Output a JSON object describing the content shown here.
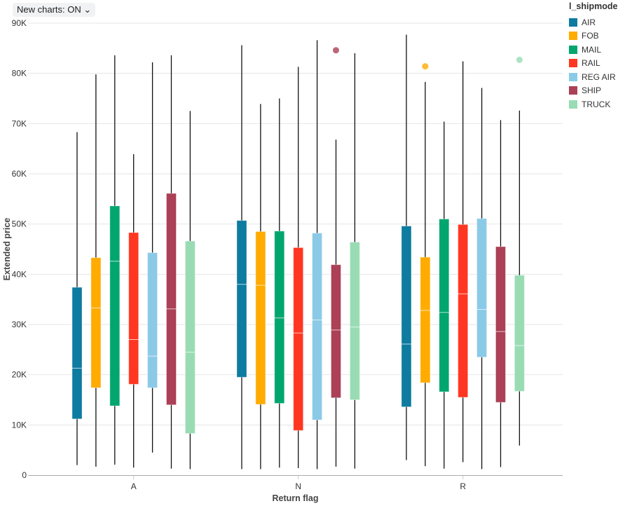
{
  "toggle": {
    "label": "New charts: ON",
    "icon": "chevron-down-icon"
  },
  "chart_data": {
    "type": "boxplot",
    "xlabel": "Return flag",
    "ylabel": "Extended price",
    "ylim": [
      0,
      90000
    ],
    "y_ticks": [
      "0",
      "10K",
      "20K",
      "30K",
      "40K",
      "50K",
      "60K",
      "70K",
      "80K",
      "90K"
    ],
    "grid": true,
    "legend_title": "l_shipmode",
    "legend_position": "right",
    "categories": [
      "A",
      "N",
      "R"
    ],
    "series": [
      {
        "name": "AIR",
        "color": "#0e7ba0",
        "boxes": [
          {
            "min": 2000,
            "q1": 11200,
            "median": 21300,
            "q3": 37400,
            "max": 68300,
            "outliers": []
          },
          {
            "min": 1200,
            "q1": 19500,
            "median": 38000,
            "q3": 50700,
            "max": 85600,
            "outliers": []
          },
          {
            "min": 3000,
            "q1": 13600,
            "median": 26100,
            "q3": 49600,
            "max": 87700,
            "outliers": []
          }
        ]
      },
      {
        "name": "FOB",
        "color": "#ffab00",
        "boxes": [
          {
            "min": 1700,
            "q1": 17400,
            "median": 33300,
            "q3": 43300,
            "max": 79800,
            "outliers": []
          },
          {
            "min": 1200,
            "q1": 14100,
            "median": 37800,
            "q3": 48500,
            "max": 73900,
            "outliers": []
          },
          {
            "min": 1800,
            "q1": 18400,
            "median": 32800,
            "q3": 43400,
            "max": 78300,
            "outliers": [
              81400
            ]
          }
        ]
      },
      {
        "name": "MAIL",
        "color": "#00a66e",
        "boxes": [
          {
            "min": 2100,
            "q1": 13800,
            "median": 42600,
            "q3": 53600,
            "max": 83600,
            "outliers": []
          },
          {
            "min": 1500,
            "q1": 14300,
            "median": 31300,
            "q3": 48600,
            "max": 75000,
            "outliers": []
          },
          {
            "min": 1300,
            "q1": 16600,
            "median": 32400,
            "q3": 51000,
            "max": 70400,
            "outliers": []
          }
        ]
      },
      {
        "name": "RAIL",
        "color": "#ff3621",
        "boxes": [
          {
            "min": 1500,
            "q1": 18100,
            "median": 27000,
            "q3": 48300,
            "max": 63900,
            "outliers": []
          },
          {
            "min": 1400,
            "q1": 8900,
            "median": 28300,
            "q3": 45300,
            "max": 81300,
            "outliers": []
          },
          {
            "min": 2600,
            "q1": 15500,
            "median": 36100,
            "q3": 49900,
            "max": 82400,
            "outliers": []
          }
        ]
      },
      {
        "name": "REG AIR",
        "color": "#8bcae7",
        "boxes": [
          {
            "min": 4500,
            "q1": 17400,
            "median": 23700,
            "q3": 44300,
            "max": 82200,
            "outliers": []
          },
          {
            "min": 1200,
            "q1": 11000,
            "median": 30900,
            "q3": 48200,
            "max": 86600,
            "outliers": []
          },
          {
            "min": 1200,
            "q1": 23500,
            "median": 33000,
            "q3": 51100,
            "max": 77100,
            "outliers": []
          }
        ]
      },
      {
        "name": "SHIP",
        "color": "#ab4057",
        "boxes": [
          {
            "min": 1300,
            "q1": 14000,
            "median": 33100,
            "q3": 56100,
            "max": 83600,
            "outliers": []
          },
          {
            "min": 1700,
            "q1": 15400,
            "median": 28900,
            "q3": 41900,
            "max": 66800,
            "outliers": [
              84600
            ]
          },
          {
            "min": 1600,
            "q1": 14500,
            "median": 28600,
            "q3": 45500,
            "max": 70700,
            "outliers": []
          }
        ]
      },
      {
        "name": "TRUCK",
        "color": "#99dcb4",
        "boxes": [
          {
            "min": 1200,
            "q1": 8300,
            "median": 24500,
            "q3": 46600,
            "max": 72500,
            "outliers": []
          },
          {
            "min": 1300,
            "q1": 15000,
            "median": 29500,
            "q3": 46400,
            "max": 84000,
            "outliers": []
          },
          {
            "min": 5900,
            "q1": 16700,
            "median": 25800,
            "q3": 39800,
            "max": 72600,
            "outliers": [
              82700
            ]
          }
        ]
      }
    ]
  }
}
